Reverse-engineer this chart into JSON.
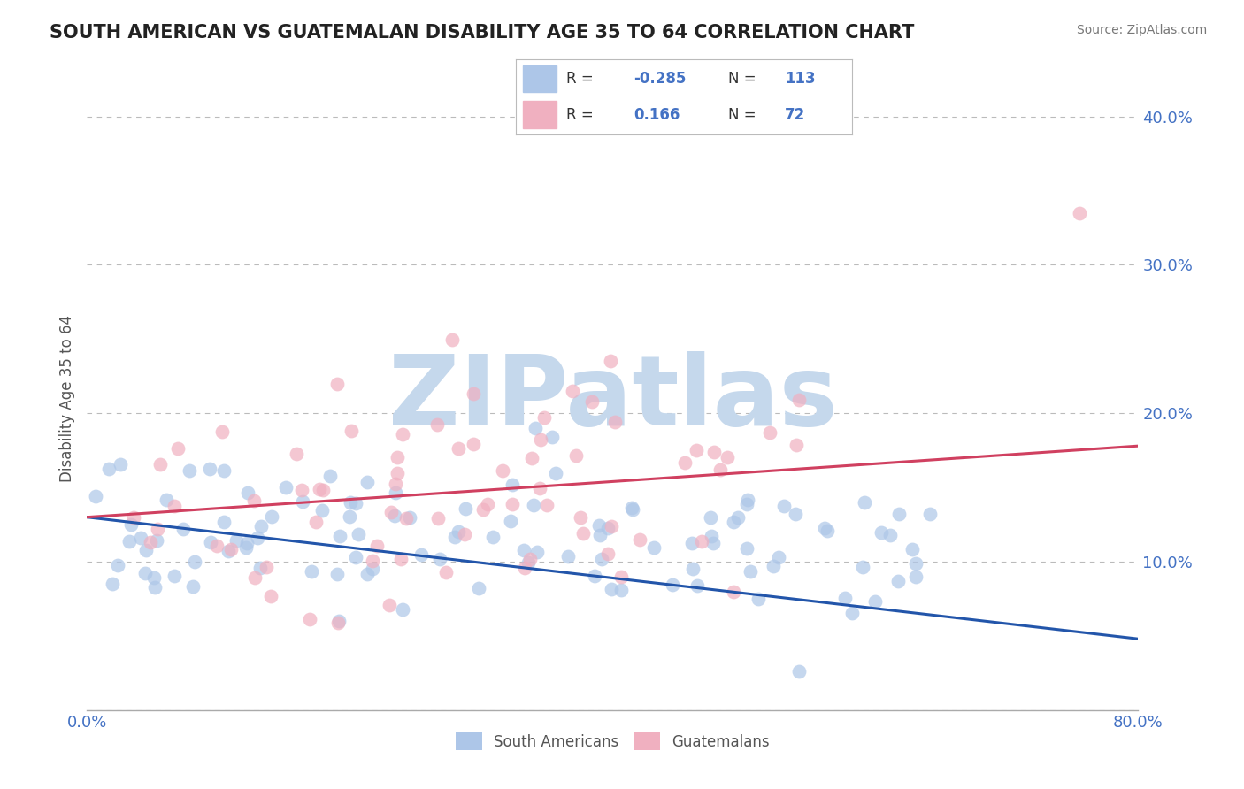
{
  "title": "SOUTH AMERICAN VS GUATEMALAN DISABILITY AGE 35 TO 64 CORRELATION CHART",
  "source": "Source: ZipAtlas.com",
  "ylabel": "Disability Age 35 to 64",
  "xlim": [
    0.0,
    0.8
  ],
  "ylim": [
    0.0,
    0.42
  ],
  "xticks": [
    0.0,
    0.1,
    0.2,
    0.3,
    0.4,
    0.5,
    0.6,
    0.7,
    0.8
  ],
  "yticks": [
    0.0,
    0.1,
    0.2,
    0.3,
    0.4
  ],
  "south_americans": {
    "R": -0.285,
    "N": 113,
    "dot_color": "#adc6e8",
    "line_color": "#2255aa",
    "label": "South Americans"
  },
  "guatemalans": {
    "R": 0.166,
    "N": 72,
    "dot_color": "#f0b0c0",
    "line_color": "#d04060",
    "label": "Guatemalans"
  },
  "trend_sa": [
    0.13,
    0.048
  ],
  "trend_gt": [
    0.13,
    0.178
  ],
  "legend_R_sa": "-0.285",
  "legend_N_sa": "113",
  "legend_R_gt": "0.166",
  "legend_N_gt": "72",
  "watermark": "ZIPatlas",
  "watermark_color": "#c5d8ec",
  "grid_color": "#bbbbbb",
  "background_color": "#ffffff",
  "title_color": "#222222",
  "seed_sa": 42,
  "seed_gt": 123
}
